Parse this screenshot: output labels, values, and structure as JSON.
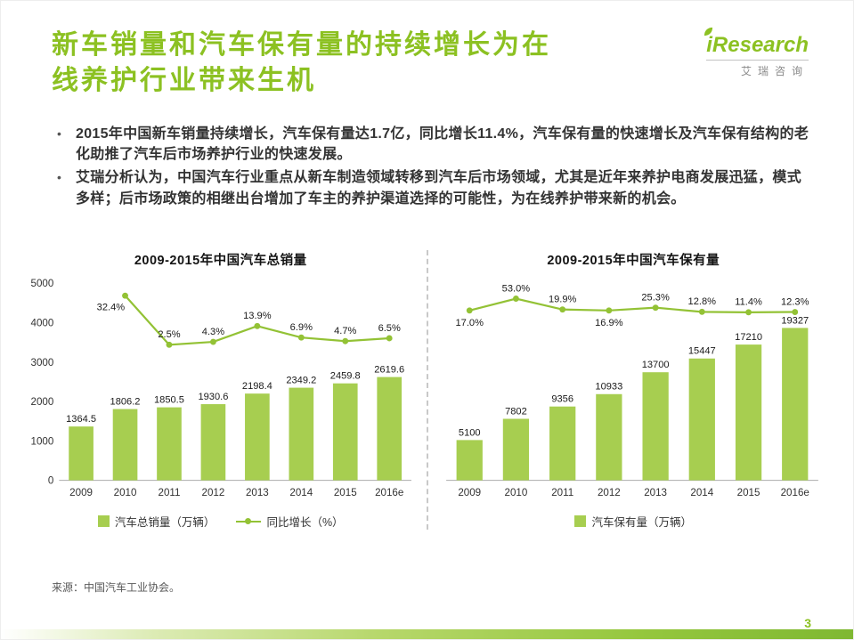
{
  "header": {
    "title_lines": [
      "新车销量和汽车保有量的持续增长为在",
      "线养护行业带来生机"
    ],
    "logo": {
      "name": "iResearch",
      "subtitle": "艾瑞咨询"
    }
  },
  "bullets": [
    "2015年中国新车销量持续增长，汽车保有量达1.7亿，同比增长11.4%，汽车保有量的快速增长及汽车保有结构的老化助推了汽车后市场养护行业的快速发展。",
    "艾瑞分析认为，中国汽车行业重点从新车制造领域转移到汽车后市场领域，尤其是近年来养护电商发展迅猛，模式多样；后市场政策的相继出台增加了车主的养护渠道选择的可能性，为在线养护带来新的机会。"
  ],
  "source": "来源：中国汽车工业协会。",
  "page_number": "3",
  "colors": {
    "accent": "#8CC122",
    "bar": "#A7CE50",
    "line": "#93C235"
  },
  "chart_data": [
    {
      "type": "bar",
      "title": "2009-2015年中国汽车总销量",
      "categories": [
        "2009",
        "2010",
        "2011",
        "2012",
        "2013",
        "2014",
        "2015",
        "2016e"
      ],
      "series": [
        {
          "name": "汽车总销量（万辆）",
          "kind": "bar",
          "values": [
            1364.5,
            1806.2,
            1850.5,
            1930.6,
            2198.4,
            2349.2,
            2459.8,
            2619.6
          ],
          "labels": [
            "1364.5",
            "1806.2",
            "1850.5",
            "1930.6",
            "2198.4",
            "2349.2",
            "2459.8",
            "2619.6"
          ]
        },
        {
          "name": "同比增长（%）",
          "kind": "line",
          "values": [
            null,
            32.4,
            2.5,
            4.3,
            13.9,
            6.9,
            4.7,
            6.5
          ],
          "labels": [
            null,
            "32.4%",
            "2.5%",
            "4.3%",
            "13.9%",
            "6.9%",
            "4.7%",
            "6.5%"
          ],
          "label_pos": [
            null,
            "below-left",
            "above",
            "above",
            "above",
            "above",
            "above",
            "above"
          ]
        }
      ],
      "ylim": [
        0,
        5000
      ],
      "yticks": [
        0,
        1000,
        2000,
        3000,
        4000,
        5000
      ],
      "show_yticks": true,
      "y2lim": [
        -80,
        40
      ],
      "grid": false,
      "legend_position": "bottom"
    },
    {
      "type": "bar",
      "title": "2009-2015年中国汽车保有量",
      "categories": [
        "2009",
        "2010",
        "2011",
        "2012",
        "2013",
        "2014",
        "2015",
        "2016e"
      ],
      "series": [
        {
          "name": "汽车保有量（万辆）",
          "kind": "bar",
          "values": [
            5100,
            7802,
            9356,
            10933,
            13700,
            15447,
            17210,
            19327
          ],
          "labels": [
            "5100",
            "7802",
            "9356",
            "10933",
            "13700",
            "15447",
            "17210",
            "19327"
          ]
        },
        {
          "name": "同比增长（%）",
          "kind": "line",
          "values": [
            17.0,
            53.0,
            19.9,
            16.9,
            25.3,
            12.8,
            11.4,
            12.3
          ],
          "labels": [
            "17.0%",
            "53.0%",
            "19.9%",
            "16.9%",
            "25.3%",
            "12.8%",
            "11.4%",
            "12.3%"
          ],
          "label_pos": [
            "below",
            "above",
            "above",
            "below",
            "above",
            "above",
            "above",
            "above"
          ]
        }
      ],
      "ylim": [
        0,
        25000
      ],
      "yticks": [],
      "show_yticks": false,
      "y2lim": [
        -500,
        100
      ],
      "grid": false,
      "legend_position": "bottom"
    }
  ]
}
